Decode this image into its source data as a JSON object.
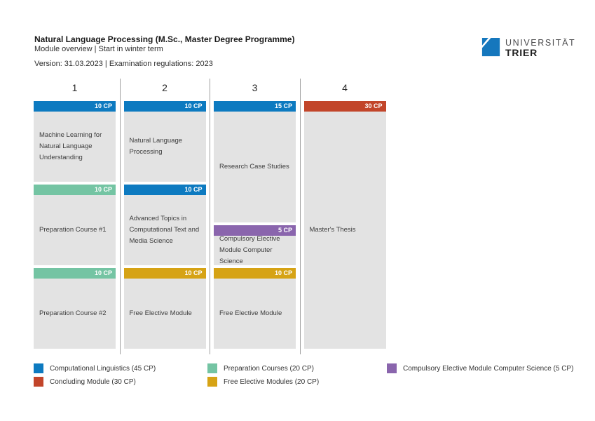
{
  "header": {
    "title": "Natural Language Processing (M.Sc., Master Degree Programme)",
    "subtitle": "Module overview  |  Start in winter term",
    "version_line": "Version: 31.03.2023  |  Examination regulations: 2023"
  },
  "logo": {
    "line1": "UNIVERSITÄT",
    "line2": "TRIER",
    "icon_color": "#1577bd"
  },
  "category_colors": {
    "computational_linguistics": "#0d7ac0",
    "concluding_module": "#c2452a",
    "preparation_courses": "#74c4a3",
    "free_elective_modules": "#d6a315",
    "compulsory_elective_cs": "#8a65ad"
  },
  "board": {
    "module_body_color": "#e3e3e3",
    "divider_color": "#9f9f9f"
  },
  "semesters": [
    {
      "number": "1",
      "modules": [
        {
          "title": "Machine Learning for Natural Language Understanding",
          "cp": 10,
          "cp_label": "10 CP",
          "category": "computational_linguistics"
        },
        {
          "title": "Preparation Course #1",
          "cp": 10,
          "cp_label": "10 CP",
          "category": "preparation_courses"
        },
        {
          "title": "Preparation Course #2",
          "cp": 10,
          "cp_label": "10 CP",
          "category": "preparation_courses"
        }
      ]
    },
    {
      "number": "2",
      "modules": [
        {
          "title": "Natural Language Processing",
          "cp": 10,
          "cp_label": "10 CP",
          "category": "computational_linguistics"
        },
        {
          "title": "Advanced Topics in Computational Text and Media Science",
          "cp": 10,
          "cp_label": "10 CP",
          "category": "computational_linguistics"
        },
        {
          "title": "Free Elective Module",
          "cp": 10,
          "cp_label": "10 CP",
          "category": "free_elective_modules"
        }
      ]
    },
    {
      "number": "3",
      "modules": [
        {
          "title": "Research Case Studies",
          "cp": 15,
          "cp_label": "15 CP",
          "category": "computational_linguistics"
        },
        {
          "title": "Compulsory Elective Module Computer Science",
          "cp": 5,
          "cp_label": "5 CP",
          "category": "compulsory_elective_cs"
        },
        {
          "title": "Free Elective Module",
          "cp": 10,
          "cp_label": "10 CP",
          "category": "free_elective_modules"
        }
      ]
    },
    {
      "number": "4",
      "modules": [
        {
          "title": "Master's Thesis",
          "cp": 30,
          "cp_label": "30 CP",
          "category": "concluding_module"
        }
      ]
    }
  ],
  "legend": {
    "columns": [
      [
        {
          "label": "Computational Linguistics (45 CP)",
          "category": "computational_linguistics"
        },
        {
          "label": "Concluding Module (30 CP)",
          "category": "concluding_module"
        }
      ],
      [
        {
          "label": "Preparation Courses (20 CP)",
          "category": "preparation_courses"
        },
        {
          "label": "Free Elective Modules (20 CP)",
          "category": "free_elective_modules"
        }
      ],
      [
        {
          "label": "Compulsory Elective Module Computer Science (5 CP)",
          "category": "compulsory_elective_cs"
        }
      ]
    ]
  }
}
